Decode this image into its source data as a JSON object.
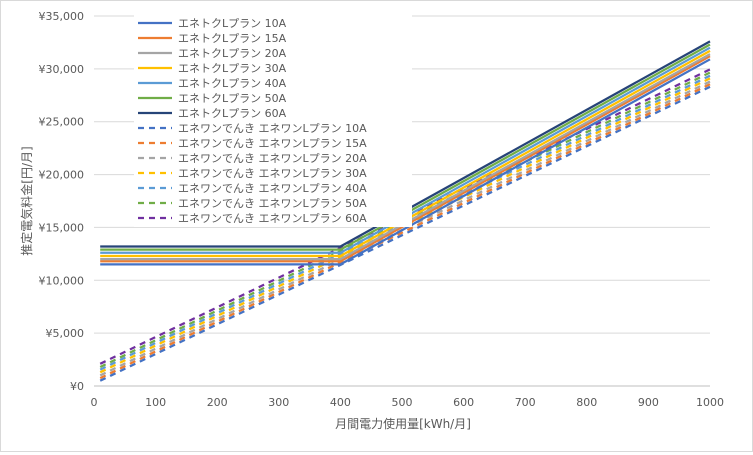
{
  "chart_data": {
    "type": "line",
    "title": "",
    "xlabel": "月間電力使用量[kWh/月]",
    "ylabel": "推定電気料金[円/月]",
    "xlim": [
      0,
      1000
    ],
    "ylim": [
      0,
      35000
    ],
    "x_ticks": [
      "0",
      "100",
      "200",
      "300",
      "400",
      "500",
      "600",
      "700",
      "800",
      "900",
      "1000"
    ],
    "y_ticks": [
      "¥0",
      "¥5,000",
      "¥10,000",
      "¥15,000",
      "¥20,000",
      "¥25,000",
      "¥30,000",
      "¥35,000"
    ],
    "grid": "horizontal",
    "legend_position": "top-left inside",
    "series": [
      {
        "name": "エネトクLプラン 10A",
        "color": "#4472c4",
        "style": "solid",
        "x": [
          10,
          400,
          1000
        ],
        "y": [
          11500,
          11500,
          30900
        ]
      },
      {
        "name": "エネトクLプラン 15A",
        "color": "#ed7d31",
        "style": "solid",
        "x": [
          10,
          400,
          1000
        ],
        "y": [
          11800,
          11800,
          31200
        ]
      },
      {
        "name": "エネトクLプラン 20A",
        "color": "#a5a5a5",
        "style": "solid",
        "x": [
          10,
          400,
          1000
        ],
        "y": [
          12000,
          12000,
          31400
        ]
      },
      {
        "name": "エネトクLプラン 30A",
        "color": "#ffc000",
        "style": "solid",
        "x": [
          10,
          400,
          1000
        ],
        "y": [
          12300,
          12300,
          31700
        ]
      },
      {
        "name": "エネトクLプラン 40A",
        "color": "#5b9bd5",
        "style": "solid",
        "x": [
          10,
          400,
          1000
        ],
        "y": [
          12600,
          12600,
          32000
        ]
      },
      {
        "name": "エネトクLプラン 50A",
        "color": "#70ad47",
        "style": "solid",
        "x": [
          10,
          400,
          1000
        ],
        "y": [
          12900,
          12900,
          32300
        ]
      },
      {
        "name": "エネトクLプラン 60A",
        "color": "#264478",
        "style": "solid",
        "x": [
          10,
          400,
          1000
        ],
        "y": [
          13200,
          13200,
          32600
        ]
      },
      {
        "name": "エネワンでんき エネワンLプラン 10A",
        "color": "#4472c4",
        "style": "dashed",
        "x": [
          10,
          1000
        ],
        "y": [
          500,
          28300
        ]
      },
      {
        "name": "エネワンでんき エネワンLプラン 15A",
        "color": "#ed7d31",
        "style": "dashed",
        "x": [
          10,
          1000
        ],
        "y": [
          750,
          28550
        ]
      },
      {
        "name": "エネワンでんき エネワンLプラン 20A",
        "color": "#a5a5a5",
        "style": "dashed",
        "x": [
          10,
          1000
        ],
        "y": [
          1000,
          28800
        ]
      },
      {
        "name": "エネワンでんき エネワンLプラン 30A",
        "color": "#ffc000",
        "style": "dashed",
        "x": [
          10,
          1000
        ],
        "y": [
          1300,
          29100
        ]
      },
      {
        "name": "エネワンでんき エネワンLプラン 40A",
        "color": "#5b9bd5",
        "style": "dashed",
        "x": [
          10,
          1000
        ],
        "y": [
          1550,
          29350
        ]
      },
      {
        "name": "エネワンでんき エネワンLプラン 50A",
        "color": "#70ad47",
        "style": "dashed",
        "x": [
          10,
          1000
        ],
        "y": [
          1800,
          29650
        ]
      },
      {
        "name": "エネワンでんき エネワンLプラン 60A",
        "color": "#7030a0",
        "style": "dashed",
        "x": [
          10,
          1000
        ],
        "y": [
          2100,
          29950
        ]
      }
    ]
  }
}
